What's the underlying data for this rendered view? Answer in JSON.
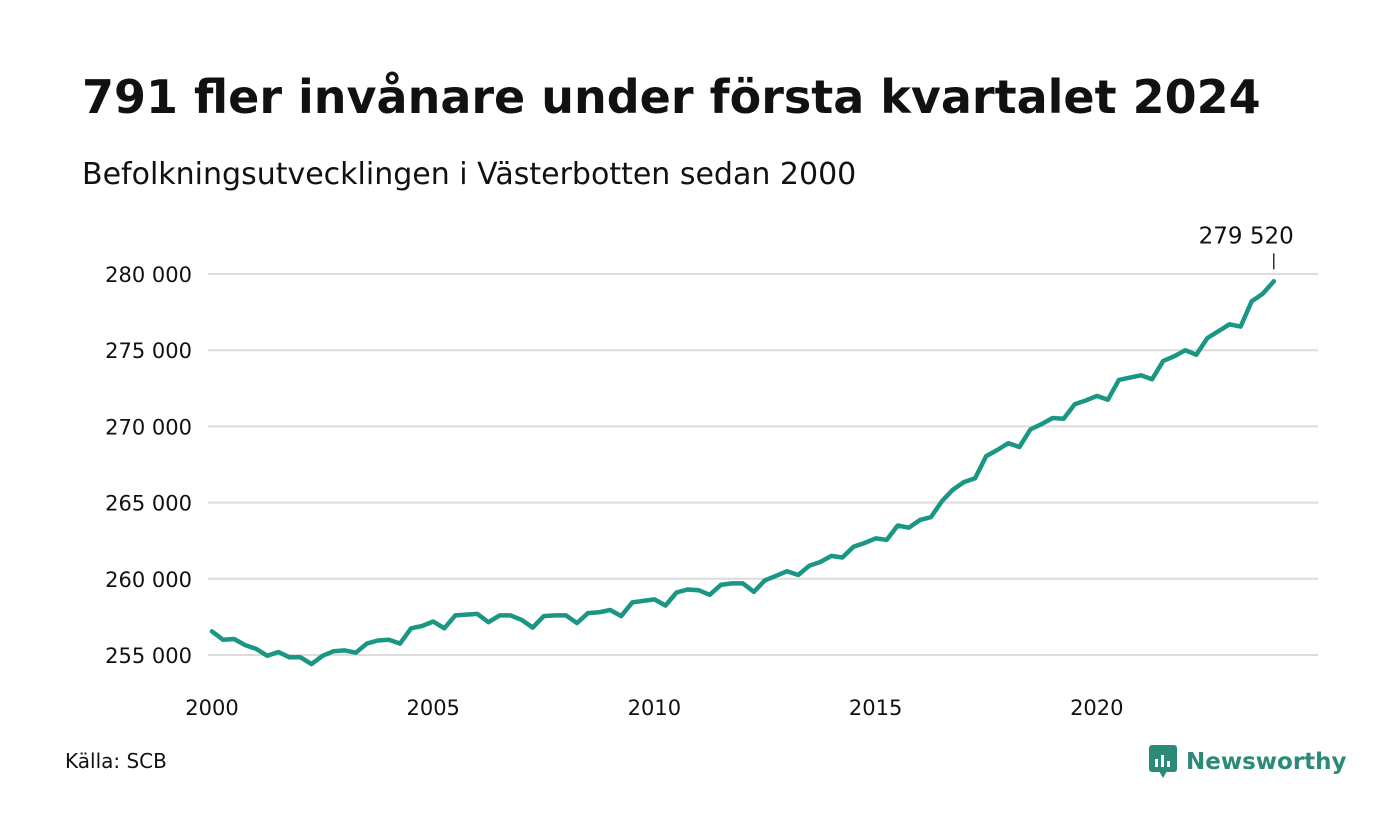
{
  "title": "791 fler invånare under första kvartalet 2024",
  "subtitle": "Befolkningsutvecklingen i Västerbotten sedan 2000",
  "source": "Källa: SCB",
  "logo": {
    "text": "Newsworthy",
    "icon": "newsworthy-logo-icon"
  },
  "colors": {
    "line": "#1a9683",
    "grid": "#dcdcdc",
    "brand": "#2b8a78"
  },
  "chart_data": {
    "type": "line",
    "title": "791 fler invånare under första kvartalet 2024",
    "subtitle": "Befolkningsutvecklingen i Västerbotten sedan 2000",
    "xlabel": "",
    "ylabel": "",
    "xlim": [
      2000,
      2025
    ],
    "ylim": [
      255000,
      280000
    ],
    "grid": true,
    "legend": "none",
    "x_ticks": [
      {
        "value": 2000,
        "label": "2000"
      },
      {
        "value": 2005,
        "label": "2005"
      },
      {
        "value": 2010,
        "label": "2010"
      },
      {
        "value": 2015,
        "label": "2015"
      },
      {
        "value": 2020,
        "label": "2020"
      }
    ],
    "y_ticks": [
      {
        "value": 255000,
        "label": "255 000"
      },
      {
        "value": 260000,
        "label": "260 000"
      },
      {
        "value": 265000,
        "label": "265 000"
      },
      {
        "value": 270000,
        "label": "270 000"
      },
      {
        "value": 275000,
        "label": "275 000"
      },
      {
        "value": 280000,
        "label": "280 000"
      }
    ],
    "annotation": {
      "label": "279 520",
      "x": 2024.0,
      "y": 279520
    },
    "series": [
      {
        "name": "",
        "x": [
          2000.0,
          2000.25,
          2000.5,
          2000.75,
          2001.0,
          2001.25,
          2001.5,
          2001.75,
          2002.0,
          2002.25,
          2002.5,
          2002.75,
          2003.0,
          2003.25,
          2003.5,
          2003.75,
          2004.0,
          2004.25,
          2004.5,
          2004.75,
          2005.0,
          2005.25,
          2005.5,
          2005.75,
          2006.0,
          2006.25,
          2006.5,
          2006.75,
          2007.0,
          2007.25,
          2007.5,
          2007.75,
          2008.0,
          2008.25,
          2008.5,
          2008.75,
          2009.0,
          2009.25,
          2009.5,
          2009.75,
          2010.0,
          2010.25,
          2010.5,
          2010.75,
          2011.0,
          2011.25,
          2011.5,
          2011.75,
          2012.0,
          2012.25,
          2012.5,
          2012.75,
          2013.0,
          2013.25,
          2013.5,
          2013.75,
          2014.0,
          2014.25,
          2014.5,
          2014.75,
          2015.0,
          2015.25,
          2015.5,
          2015.75,
          2016.0,
          2016.25,
          2016.5,
          2016.75,
          2017.0,
          2017.25,
          2017.5,
          2017.75,
          2018.0,
          2018.25,
          2018.5,
          2018.75,
          2019.0,
          2019.25,
          2019.5,
          2019.75,
          2020.0,
          2020.25,
          2020.5,
          2020.75,
          2021.0,
          2021.25,
          2021.5,
          2021.75,
          2022.0,
          2022.25,
          2022.5,
          2022.75,
          2023.0,
          2023.25,
          2023.5,
          2023.75,
          2024.0
        ],
        "values": [
          256550,
          256000,
          256050,
          255650,
          255400,
          254950,
          255200,
          254850,
          254850,
          254400,
          254950,
          255250,
          255300,
          255150,
          255750,
          255950,
          256000,
          255750,
          256750,
          256900,
          257200,
          256750,
          257600,
          257650,
          257700,
          257150,
          257600,
          257600,
          257300,
          256800,
          257550,
          257600,
          257600,
          257100,
          257750,
          257800,
          257950,
          257550,
          258450,
          258550,
          258650,
          258250,
          259100,
          259300,
          259250,
          258950,
          259600,
          259700,
          259700,
          259150,
          259900,
          260200,
          260500,
          260250,
          260850,
          261100,
          261500,
          261400,
          262100,
          262350,
          262650,
          262550,
          263500,
          263350,
          263850,
          264050,
          265100,
          265850,
          266350,
          266600,
          268050,
          268450,
          268900,
          268650,
          269800,
          270150,
          270550,
          270500,
          271450,
          271700,
          272000,
          271750,
          273050,
          273200,
          273350,
          273100,
          274300,
          274600,
          275000,
          274700,
          275800,
          276250,
          276700,
          276550,
          278200,
          278700,
          279520
        ]
      }
    ]
  }
}
